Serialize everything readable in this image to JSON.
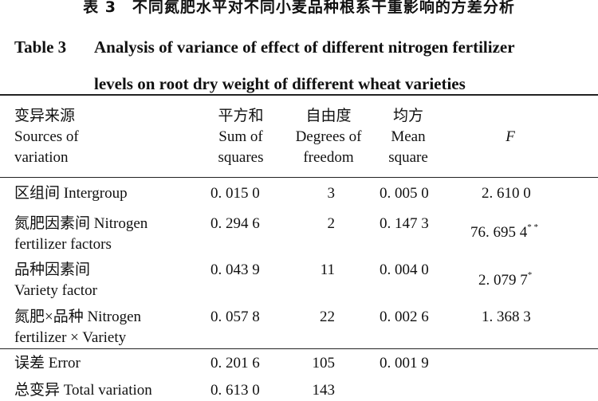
{
  "caption": {
    "cn": "表 3　不同氮肥水平对不同小麦品种根系干重影响的方差分析",
    "en_label": "Table 3",
    "en_line1": "Analysis of variance of effect of different nitrogen fertilizer",
    "en_line2": "levels on root dry weight of different wheat varieties"
  },
  "headers": [
    {
      "cn": "变异来源",
      "en": [
        "Sources of",
        "variation"
      ]
    },
    {
      "cn": "平方和",
      "en": [
        "Sum of",
        "squares"
      ]
    },
    {
      "cn": "自由度",
      "en": [
        "Degrees of",
        "freedom"
      ]
    },
    {
      "cn": "均方",
      "en": [
        "Mean",
        "square"
      ]
    },
    {
      "cn": "",
      "en": [
        "F"
      ]
    }
  ],
  "rows": [
    {
      "source": [
        "区组间 Intergroup"
      ],
      "ss": "0. 015 0",
      "df": "3",
      "ms": "0. 005 0",
      "f": "2. 610 0",
      "sig": ""
    },
    {
      "source": [
        "氮肥因素间 Nitrogen",
        "fertilizer factors"
      ],
      "ss": "0. 294 6",
      "df": "2",
      "ms": "0. 147 3",
      "f": "76. 695 4",
      "sig": "* *"
    },
    {
      "source": [
        "品种因素间",
        "Variety factor"
      ],
      "ss": "0. 043 9",
      "df": "11",
      "ms": "0. 004 0",
      "f": "2. 079 7",
      "sig": "*"
    },
    {
      "source": [
        "氮肥×品种 Nitrogen",
        "fertilizer × Variety"
      ],
      "ss": "0. 057 8",
      "df": "22",
      "ms": "0. 002 6",
      "f": "1. 368 3",
      "sig": ""
    },
    {
      "source": [
        "误差 Error"
      ],
      "ss": "0. 201 6",
      "df": "105",
      "ms": "0. 001 9",
      "f": "",
      "sig": ""
    },
    {
      "source": [
        "总变异 Total variation"
      ],
      "ss": "0. 613 0",
      "df": "143",
      "ms": "",
      "f": "",
      "sig": ""
    }
  ]
}
